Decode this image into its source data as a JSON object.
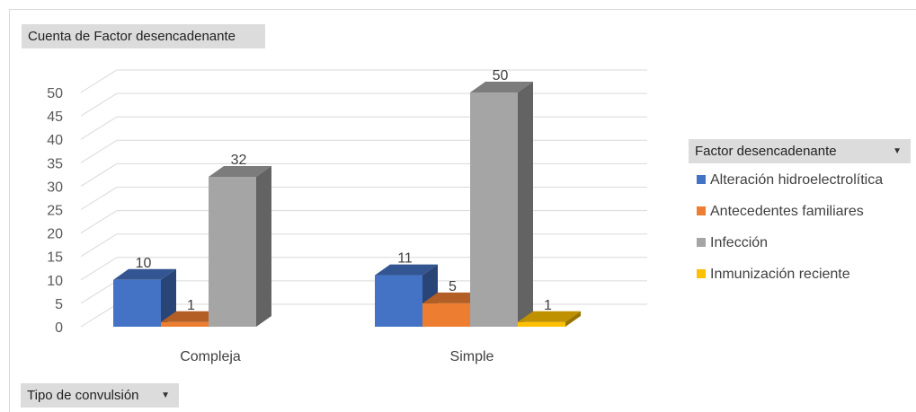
{
  "value_field_button": {
    "label": "Cuenta de Factor desencadenante"
  },
  "axis_field_button": {
    "label": "Tipo de convulsión",
    "arrow": "▾"
  },
  "legend_field_button": {
    "label": "Factor desencadenante",
    "arrow": "▾"
  },
  "colors": {
    "Alteración hidroelectrolítica": "#4472c4",
    "Antecedentes familiares": "#ed7d31",
    "Infección": "#a5a5a5",
    "Inmunización reciente": "#ffc000"
  },
  "chart_data": {
    "type": "bar",
    "title": "",
    "xlabel": "",
    "ylabel": "",
    "ylim": [
      0,
      50
    ],
    "yticks": [
      0,
      5,
      10,
      15,
      20,
      25,
      30,
      35,
      40,
      45,
      50
    ],
    "grid": true,
    "legend_position": "right",
    "categories": [
      "Compleja",
      "Simple"
    ],
    "series": [
      {
        "name": "Alteración hidroelectrolítica",
        "values": [
          10,
          11
        ]
      },
      {
        "name": "Antecedentes familiares",
        "values": [
          1,
          5
        ]
      },
      {
        "name": "Infección",
        "values": [
          32,
          50
        ]
      },
      {
        "name": "Inmunización reciente",
        "values": [
          null,
          1
        ]
      }
    ]
  }
}
